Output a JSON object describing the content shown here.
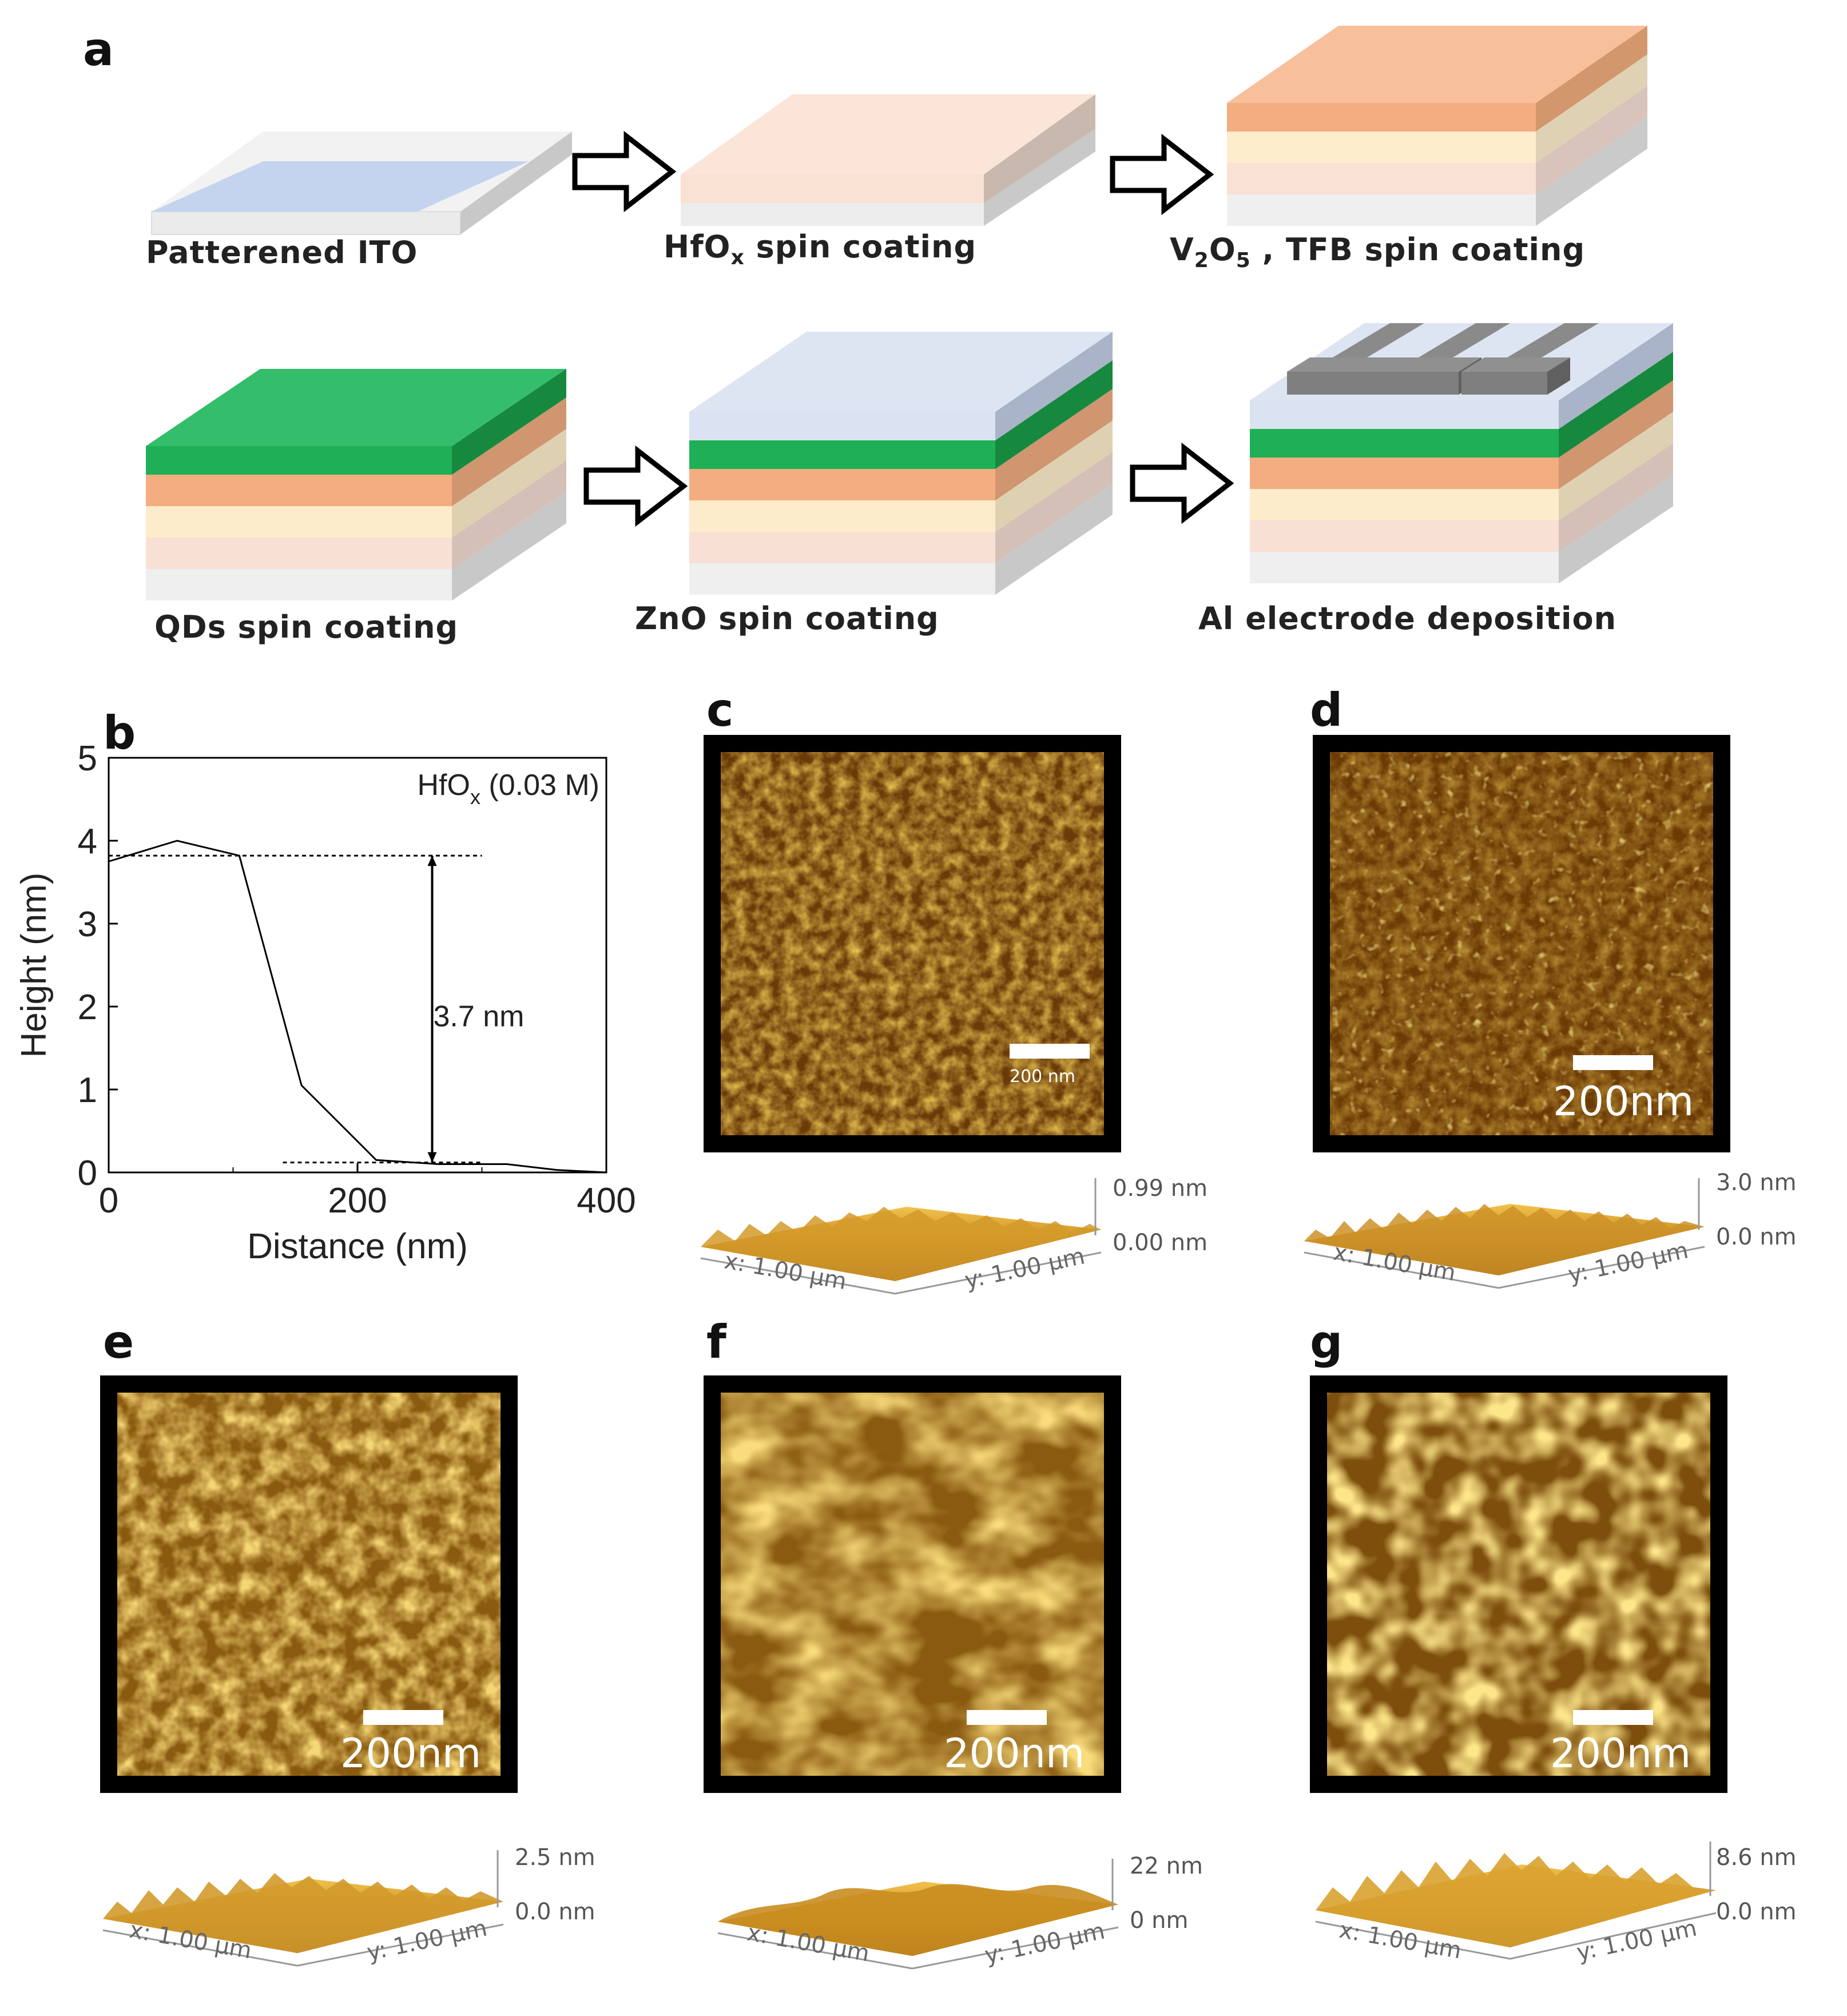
{
  "panel_labels": {
    "a": "a",
    "b": "b",
    "c": "c",
    "d": "d",
    "e": "e",
    "f": "f",
    "g": "g"
  },
  "panel_a": {
    "steps": [
      {
        "pre": "Patterened ITO",
        "sub": "",
        "post": ""
      },
      {
        "pre": "HfO",
        "sub": "x",
        "post": " spin coating"
      },
      {
        "pre": "V",
        "sub": "2",
        "mid": "O",
        "sub2": "5",
        "post": " , TFB spin coating"
      },
      {
        "pre": "QDs spin coating",
        "sub": "",
        "post": ""
      },
      {
        "pre": "ZnO spin coating",
        "sub": "",
        "post": ""
      },
      {
        "pre": "Al electrode deposition",
        "sub": "",
        "post": ""
      }
    ],
    "layer_colors": {
      "glass": "#f0f0f0",
      "ito": "#c4d4ee",
      "hfox": "#f9e3d8",
      "v2o5": "#fdebc8",
      "tfb": "#f4b081",
      "qd": "#22b459",
      "zno": "#dbe3f2",
      "al": "#7f7f7f"
    }
  },
  "chart_data": {
    "type": "line",
    "xlabel": "Distance (nm)",
    "ylabel": "Height (nm)",
    "xlim": [
      0,
      400
    ],
    "ylim": [
      0,
      5
    ],
    "xticks": [
      "0",
      "200",
      "400"
    ],
    "yticks": [
      "0",
      "1",
      "2",
      "3",
      "4",
      "5"
    ],
    "legend_pre": "HfO",
    "legend_sub": "x",
    "legend_post": " (0.03 M)",
    "annotation": "3.7 nm",
    "series": [
      {
        "x": [
          0,
          55,
          105,
          155,
          215,
          265,
          320,
          360,
          400
        ],
        "y": [
          3.75,
          4.0,
          3.82,
          1.05,
          0.15,
          0.1,
          0.1,
          0.03,
          0.0
        ]
      }
    ],
    "ref_upper": {
      "x": [
        0,
        300
      ],
      "y": 3.82
    },
    "ref_lower": {
      "x": [
        140,
        300
      ],
      "y": 0.12
    },
    "arrow_x": 260
  },
  "afm": {
    "c": {
      "scale": "200 nm",
      "zmax": "0.99 nm",
      "zmin": "0.00 nm",
      "xlab": "x: 1.00 µm",
      "ylab": "y: 1.00 µm"
    },
    "d": {
      "scale": "200nm",
      "zmax": "3.0 nm",
      "zmin": "0.0 nm",
      "xlab": "x: 1.00 µm",
      "ylab": "y: 1.00 µm"
    },
    "e": {
      "scale": "200nm",
      "zmax": "2.5 nm",
      "zmin": "0.0 nm",
      "xlab": "x: 1.00 µm",
      "ylab": "y: 1.00 µm"
    },
    "f": {
      "scale": "200nm",
      "zmax": "22 nm",
      "zmin": "0 nm",
      "xlab": "x: 1.00 µm",
      "ylab": "y: 1.00 µm"
    },
    "g": {
      "scale": "200nm",
      "zmax": "8.6 nm",
      "zmin": "0.0 nm",
      "xlab": "x: 1.00 µm",
      "ylab": "y: 1.00 µm"
    }
  }
}
